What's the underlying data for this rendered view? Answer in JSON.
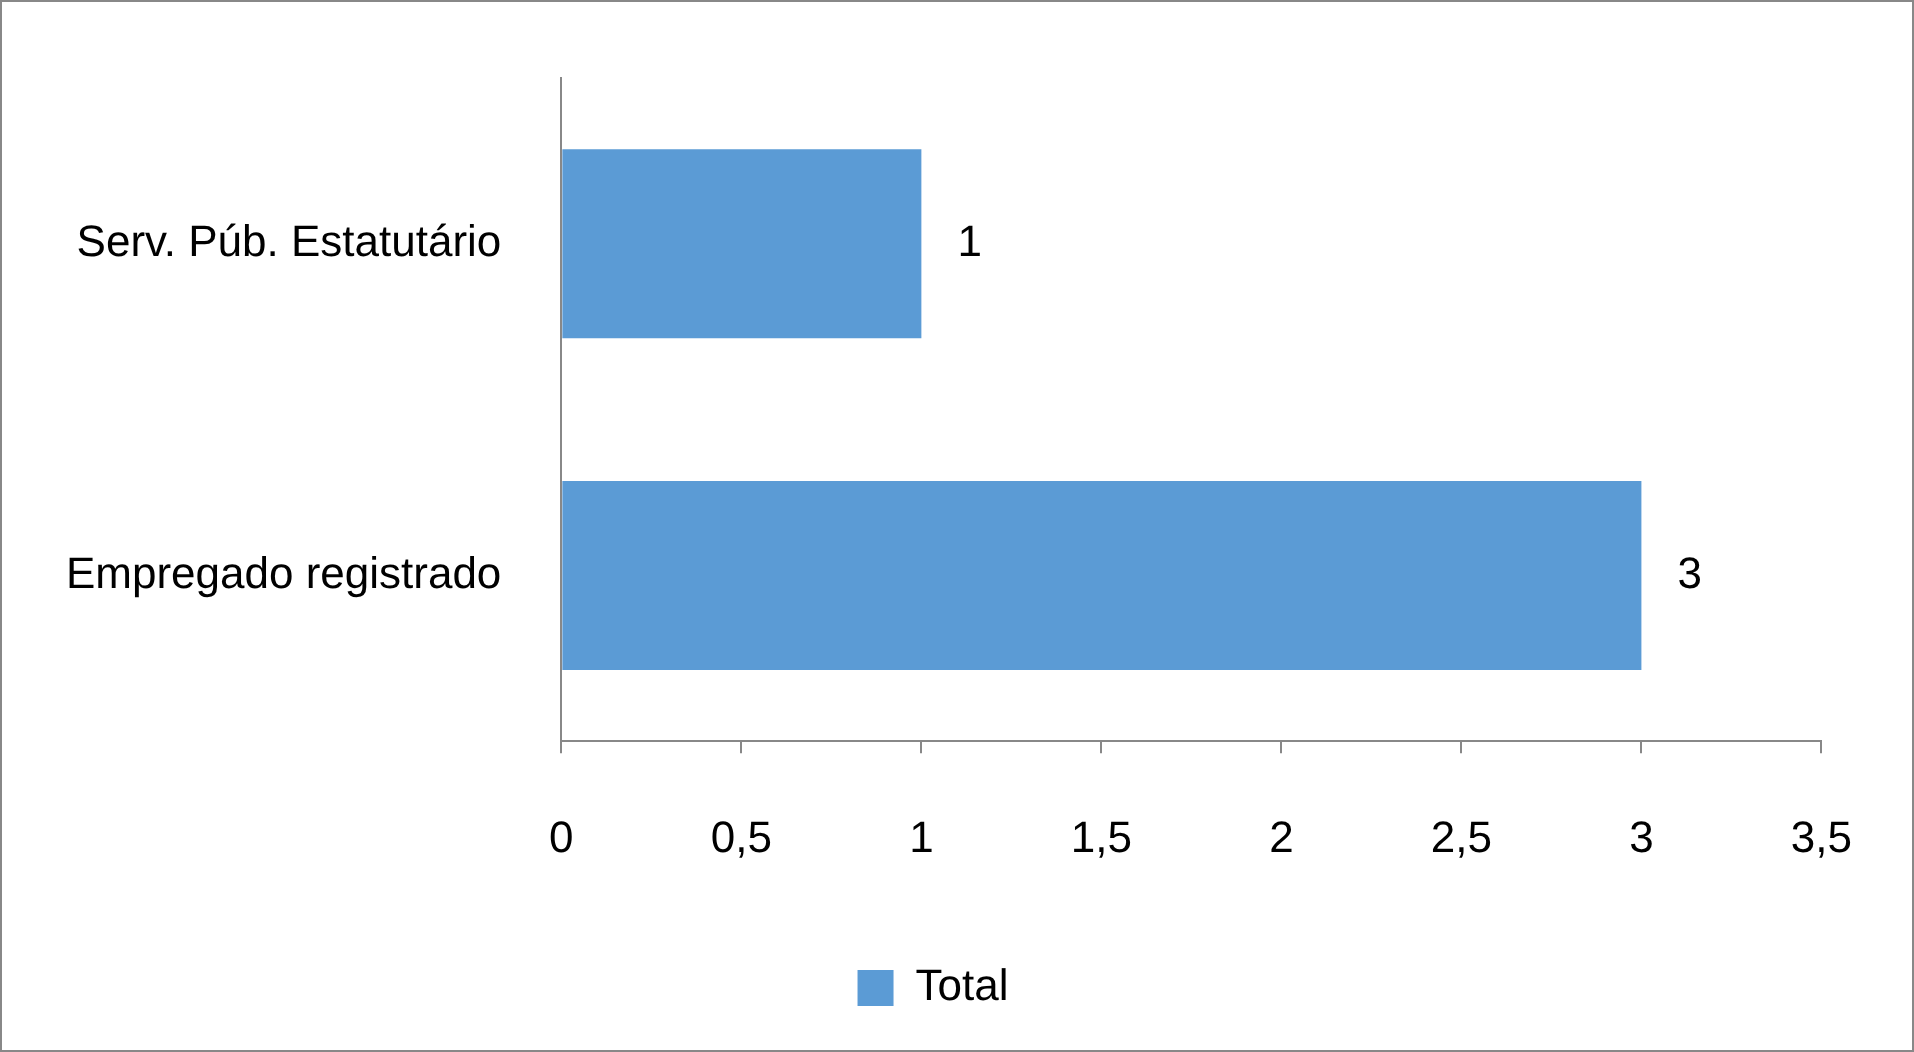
{
  "chart_data": {
    "type": "bar",
    "orientation": "horizontal",
    "categories": [
      "Serv. Púb. Estatutário",
      "Empregado registrado"
    ],
    "series": [
      {
        "name": "Total",
        "color": "#5b9bd5",
        "values": [
          1,
          3
        ]
      }
    ],
    "xlim": [
      0,
      3.5
    ],
    "xticks": [
      0,
      {
        "value": 0.5,
        "label": "0,5"
      },
      1,
      {
        "value": 1.5,
        "label": "1,5"
      },
      2,
      {
        "value": 2.5,
        "label": "2,5"
      },
      3,
      {
        "value": 3.5,
        "label": "3,5"
      }
    ],
    "data_labels": true,
    "grid": false,
    "legend": "bottom"
  }
}
